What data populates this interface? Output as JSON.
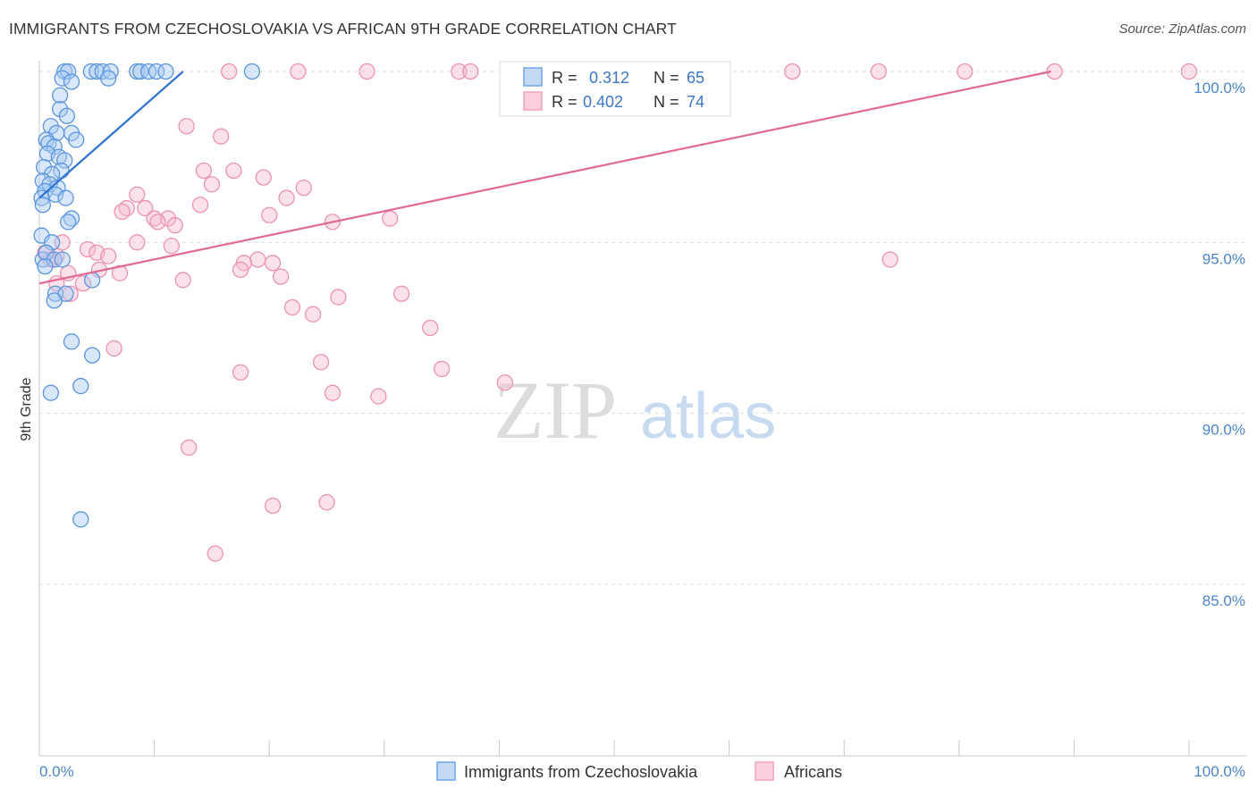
{
  "title": "IMMIGRANTS FROM CZECHOSLOVAKIA VS AFRICAN 9TH GRADE CORRELATION CHART",
  "source": "Source: ZipAtlas.com",
  "watermark": {
    "zip": "ZIP",
    "atlas": "atlas"
  },
  "colors": {
    "blue": "#6fa6e8",
    "blue_line": "#2f72d0",
    "pink": "#f0a2bb",
    "pink_line": "#e06a93"
  },
  "legend": {
    "rows": [
      {
        "r_label": "R =",
        "r_value": "0.312",
        "n_label": "N =",
        "n_value": "65"
      },
      {
        "r_label": "R =",
        "r_value": "0.402",
        "n_label": "N =",
        "n_value": "74"
      }
    ]
  },
  "bottom_legend": [
    "Immigrants from Czechoslovakia",
    "Africans"
  ],
  "chart_data": {
    "type": "scatter",
    "title": "IMMIGRANTS FROM CZECHOSLOVAKIA VS AFRICAN 9TH GRADE CORRELATION CHART",
    "xlabel": "",
    "ylabel": "9th Grade",
    "xlim": [
      0,
      100
    ],
    "ylim": [
      80.2,
      100.6
    ],
    "x_tick_labels": [
      "0.0%",
      "100.0%"
    ],
    "y_ticks": [
      85,
      90,
      95,
      100
    ],
    "y_tick_labels": [
      "85.0%",
      "90.0%",
      "95.0%",
      "100.0%"
    ],
    "grid": true,
    "series": [
      {
        "name": "Immigrants from Czechoslovakia",
        "color": "#6fa6e8",
        "trend": {
          "x": [
            0,
            12.5
          ],
          "y": [
            96.3,
            100.0
          ]
        },
        "points": [
          [
            2.2,
            100
          ],
          [
            2.5,
            100
          ],
          [
            4.5,
            100
          ],
          [
            5.0,
            100
          ],
          [
            5.5,
            100
          ],
          [
            6.2,
            100
          ],
          [
            8.5,
            100
          ],
          [
            8.8,
            100
          ],
          [
            9.5,
            100
          ],
          [
            10.2,
            100
          ],
          [
            18.5,
            100
          ],
          [
            11.0,
            100
          ],
          [
            2.0,
            99.8
          ],
          [
            2.8,
            99.7
          ],
          [
            6.0,
            99.8
          ],
          [
            1.8,
            99.3
          ],
          [
            1.8,
            98.9
          ],
          [
            2.4,
            98.7
          ],
          [
            1.0,
            98.4
          ],
          [
            1.5,
            98.2
          ],
          [
            2.8,
            98.2
          ],
          [
            3.2,
            98.0
          ],
          [
            0.6,
            98.0
          ],
          [
            0.8,
            97.9
          ],
          [
            1.3,
            97.8
          ],
          [
            0.7,
            97.6
          ],
          [
            1.7,
            97.5
          ],
          [
            2.2,
            97.4
          ],
          [
            0.4,
            97.2
          ],
          [
            1.9,
            97.1
          ],
          [
            1.1,
            97.0
          ],
          [
            0.3,
            96.8
          ],
          [
            0.9,
            96.7
          ],
          [
            1.6,
            96.6
          ],
          [
            0.5,
            96.5
          ],
          [
            1.4,
            96.4
          ],
          [
            0.2,
            96.3
          ],
          [
            0.3,
            96.1
          ],
          [
            2.3,
            96.3
          ],
          [
            2.8,
            95.7
          ],
          [
            2.5,
            95.6
          ],
          [
            0.2,
            95.2
          ],
          [
            1.1,
            95.0
          ],
          [
            0.3,
            94.5
          ],
          [
            0.6,
            94.7
          ],
          [
            1.3,
            94.5
          ],
          [
            2.0,
            94.5
          ],
          [
            0.5,
            94.3
          ],
          [
            4.6,
            93.9
          ],
          [
            1.4,
            93.5
          ],
          [
            2.3,
            93.5
          ],
          [
            1.3,
            93.3
          ],
          [
            2.8,
            92.1
          ],
          [
            4.6,
            91.7
          ],
          [
            3.6,
            90.8
          ],
          [
            1.0,
            90.6
          ],
          [
            3.6,
            86.9
          ]
        ]
      },
      {
        "name": "Africans",
        "color": "#f0a2bb",
        "trend": {
          "x": [
            0,
            88
          ],
          "y": [
            93.8,
            100.0
          ]
        },
        "points": [
          [
            16.5,
            100
          ],
          [
            22.5,
            100
          ],
          [
            28.5,
            100
          ],
          [
            36.5,
            100
          ],
          [
            37.5,
            100
          ],
          [
            42.8,
            100
          ],
          [
            43.3,
            100
          ],
          [
            46.5,
            100
          ],
          [
            51.0,
            99.9
          ],
          [
            58.0,
            100
          ],
          [
            65.5,
            100
          ],
          [
            73.0,
            100
          ],
          [
            80.5,
            100
          ],
          [
            88.3,
            100
          ],
          [
            100,
            100
          ],
          [
            12.8,
            98.4
          ],
          [
            15.8,
            98.1
          ],
          [
            14.3,
            97.1
          ],
          [
            16.9,
            97.1
          ],
          [
            15.0,
            96.7
          ],
          [
            19.5,
            96.9
          ],
          [
            23.0,
            96.6
          ],
          [
            21.5,
            96.3
          ],
          [
            8.5,
            96.4
          ],
          [
            7.6,
            96.0
          ],
          [
            9.2,
            96.0
          ],
          [
            14.0,
            96.1
          ],
          [
            7.2,
            95.9
          ],
          [
            10.0,
            95.7
          ],
          [
            11.2,
            95.7
          ],
          [
            20.0,
            95.8
          ],
          [
            25.5,
            95.6
          ],
          [
            30.5,
            95.7
          ],
          [
            10.3,
            95.6
          ],
          [
            11.8,
            95.5
          ],
          [
            2.0,
            95.0
          ],
          [
            8.5,
            95.0
          ],
          [
            11.5,
            94.9
          ],
          [
            4.2,
            94.8
          ],
          [
            5.0,
            94.7
          ],
          [
            1.5,
            94.6
          ],
          [
            6.0,
            94.6
          ],
          [
            0.5,
            94.7
          ],
          [
            1.0,
            94.5
          ],
          [
            19.0,
            94.5
          ],
          [
            17.8,
            94.4
          ],
          [
            17.5,
            94.2
          ],
          [
            20.3,
            94.4
          ],
          [
            7.0,
            94.1
          ],
          [
            5.2,
            94.2
          ],
          [
            2.5,
            94.1
          ],
          [
            74.0,
            94.5
          ],
          [
            12.5,
            93.9
          ],
          [
            21.0,
            94.0
          ],
          [
            1.5,
            93.8
          ],
          [
            3.8,
            93.8
          ],
          [
            2.7,
            93.5
          ],
          [
            26.0,
            93.4
          ],
          [
            31.5,
            93.5
          ],
          [
            22.0,
            93.1
          ],
          [
            23.8,
            92.9
          ],
          [
            34.0,
            92.5
          ],
          [
            6.5,
            91.9
          ],
          [
            24.5,
            91.5
          ],
          [
            35.0,
            91.3
          ],
          [
            17.5,
            91.2
          ],
          [
            40.5,
            90.9
          ],
          [
            25.5,
            90.6
          ],
          [
            29.5,
            90.5
          ],
          [
            13.0,
            89.0
          ],
          [
            20.3,
            87.3
          ],
          [
            25.0,
            87.4
          ],
          [
            15.3,
            85.9
          ]
        ]
      }
    ]
  }
}
